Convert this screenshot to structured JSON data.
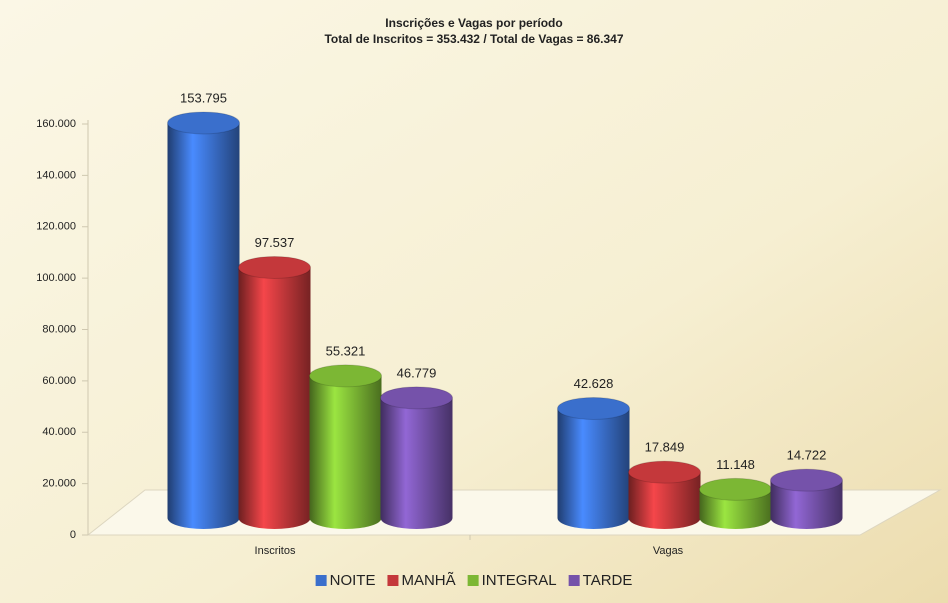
{
  "chart_data": {
    "type": "bar",
    "title": "Inscrições e Vagas por período",
    "subtitle": "Total de Inscritos = 353.432 / Total de Vagas = 86.347",
    "categories": [
      "Inscritos",
      "Vagas"
    ],
    "series": [
      {
        "name": "NOITE",
        "color": "#3a6fcc",
        "values": [
          153795,
          42628
        ],
        "value_labels": [
          "153.795",
          "42.628"
        ]
      },
      {
        "name": "MANHÃ",
        "color": "#c4383b",
        "values": [
          97537,
          17849
        ],
        "value_labels": [
          "97.537",
          "17.849"
        ]
      },
      {
        "name": "INTEGRAL",
        "color": "#7cb734",
        "values": [
          55321,
          11148
        ],
        "value_labels": [
          "55.321",
          "11.148"
        ]
      },
      {
        "name": "TARDE",
        "color": "#7552aa",
        "values": [
          46779,
          14722
        ],
        "value_labels": [
          "46.779",
          "14.722"
        ]
      }
    ],
    "ylim": [
      0,
      160000
    ],
    "yticks": [
      0,
      {
        "value": 20000,
        "label": "20.000"
      },
      {
        "value": 40000,
        "label": "40.000"
      },
      {
        "value": 60000,
        "label": "60.000"
      },
      {
        "value": 80000,
        "label": "80.000"
      },
      {
        "value": 100000,
        "label": "100.000"
      },
      {
        "value": 120000,
        "label": "120.000"
      },
      {
        "value": 140000,
        "label": "140.000"
      },
      {
        "value": 160000,
        "label": "160.000"
      }
    ],
    "legend": "bottom"
  }
}
